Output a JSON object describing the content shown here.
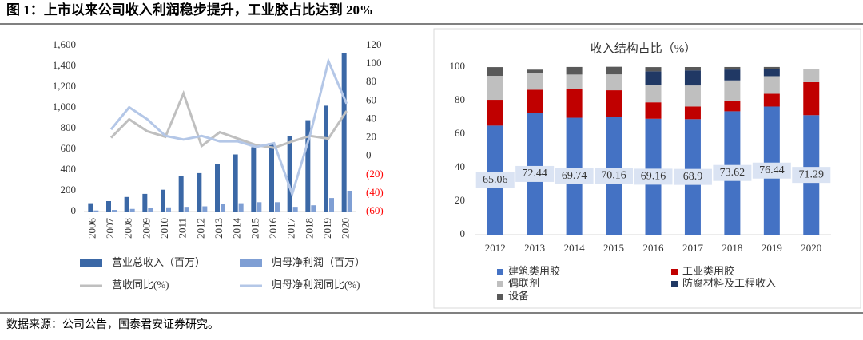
{
  "header": {
    "title": "图 1：上市以来公司收入利润稳步提升，工业胶占比达到 20%"
  },
  "chart_data": [
    {
      "type": "bar",
      "categories": [
        "2006",
        "2007",
        "2008",
        "2009",
        "2010",
        "2011",
        "2012",
        "2013",
        "2014",
        "2015",
        "2016",
        "2017",
        "2018",
        "2019",
        "2020"
      ],
      "ylim": [
        0,
        1600
      ],
      "yticks": [
        0,
        200,
        400,
        600,
        800,
        {
          "value": 1000,
          "label": "1,000"
        },
        {
          "value": 1200,
          "label": "1,200"
        },
        {
          "value": 1400,
          "label": "1,400"
        },
        {
          "value": 1600,
          "label": "1,600"
        }
      ],
      "y2lim": [
        -60,
        120
      ],
      "y2ticks": [
        {
          "value": -60,
          "label": "(60)"
        },
        {
          "value": -40,
          "label": "(40)"
        },
        {
          "value": -20,
          "label": "(20)"
        },
        0,
        20,
        40,
        60,
        80,
        100,
        120
      ],
      "y2tick_negative_color": "#ff0000",
      "series": [
        {
          "name": "营业总收入（百万）",
          "type": "bar",
          "color": "#3b68a6",
          "values": [
            80,
            100,
            140,
            170,
            210,
            340,
            370,
            460,
            550,
            620,
            650,
            730,
            880,
            1020,
            1530
          ]
        },
        {
          "name": "归母净利润（百万）",
          "type": "bar",
          "color": "#7f9fd4",
          "values": [
            10,
            15,
            25,
            35,
            40,
            45,
            50,
            70,
            80,
            90,
            90,
            45,
            60,
            130,
            200
          ]
        },
        {
          "name": "营收同比(%)",
          "type": "line",
          "axis": "y2",
          "color": "#bfbfbf",
          "values": [
            null,
            20,
            40,
            27,
            21,
            68,
            11,
            26,
            19,
            12,
            9,
            16,
            22,
            19,
            49
          ]
        },
        {
          "name": "归母净利润同比(%)",
          "type": "line",
          "axis": "y2",
          "color": "#b4c7e7",
          "values": [
            null,
            29,
            53,
            40,
            22,
            18,
            22,
            16,
            16,
            10,
            14,
            -41,
            24,
            103,
            57
          ]
        }
      ]
    },
    {
      "type": "stacked_bar",
      "title": "收入结构占比（%）",
      "categories": [
        "2012",
        "2013",
        "2014",
        "2015",
        "2016",
        "2017",
        "2018",
        "2019",
        "2020"
      ],
      "ylim": [
        0,
        100
      ],
      "yticks": [
        0,
        20,
        40,
        60,
        80,
        100
      ],
      "series": [
        {
          "name": "建筑类用胶",
          "color": "#4472c4",
          "values": [
            65.06,
            72.44,
            69.74,
            70.16,
            69.16,
            68.9,
            73.62,
            76.44,
            71.29
          ]
        },
        {
          "name": "工业类用胶",
          "color": "#c00000",
          "values": [
            15.4,
            14,
            17.3,
            16,
            9.8,
            7.6,
            6.4,
            7.6,
            19.7
          ]
        },
        {
          "name": "偶联剂",
          "color": "#bfbfbf",
          "values": [
            14.3,
            10,
            8.5,
            9.5,
            10.5,
            12.5,
            12,
            10.5,
            8
          ]
        },
        {
          "name": "防腐材料及工程收入",
          "color": "#203864",
          "values": [
            0,
            0,
            0,
            0,
            8,
            9,
            6.5,
            4.5,
            0
          ]
        },
        {
          "name": "设备",
          "color": "#595959",
          "values": [
            5.2,
            2,
            4.5,
            4.5,
            2.5,
            2,
            1.5,
            1,
            0
          ]
        }
      ]
    }
  ],
  "source": "数据来源：公司公告，国泰君安证券研究。"
}
